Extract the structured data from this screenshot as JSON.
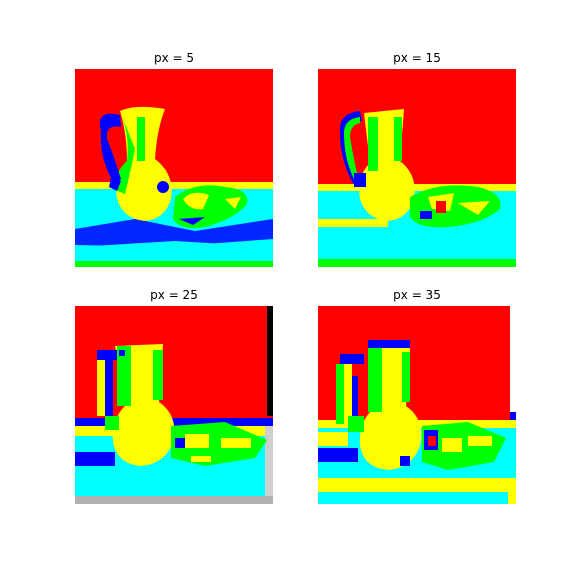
{
  "figure": {
    "panels": [
      {
        "title": "px = 5"
      },
      {
        "title": "px = 15"
      },
      {
        "title": "px = 25"
      },
      {
        "title": "px = 35"
      }
    ],
    "palette": {
      "background": "#ff0000",
      "table": "#00ffff",
      "highlight": "#ffff00",
      "mid": "#00ff00",
      "shadow": "#0000ff",
      "frame": "#ffffff",
      "edge_dark": "#000000"
    }
  }
}
